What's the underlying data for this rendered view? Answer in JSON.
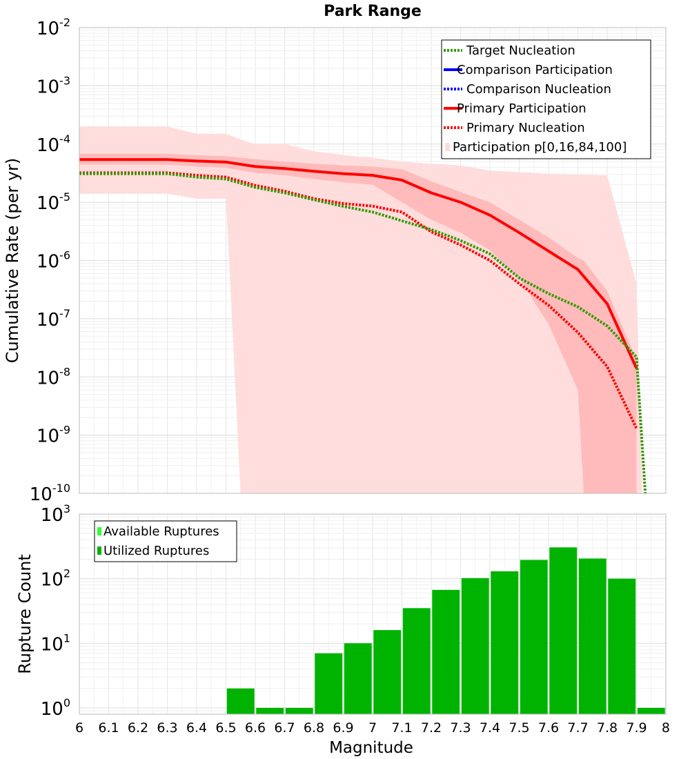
{
  "chart_data": [
    {
      "type": "line",
      "title": "Park Range",
      "xlabel": "",
      "ylabel": "Cumulative Rate (per yr)",
      "xlim": [
        6,
        8
      ],
      "ylim": [
        1e-10,
        0.01
      ],
      "yscale": "log",
      "grid": true,
      "legend_position": "top-right",
      "y_ticks": [
        {
          "base": "10",
          "exp": "-2"
        },
        {
          "base": "10",
          "exp": "-3"
        },
        {
          "base": "10",
          "exp": "-4"
        },
        {
          "base": "10",
          "exp": "-5"
        },
        {
          "base": "10",
          "exp": "-6"
        },
        {
          "base": "10",
          "exp": "-7"
        },
        {
          "base": "10",
          "exp": "-8"
        },
        {
          "base": "10",
          "exp": "-9"
        },
        {
          "base": "10",
          "exp": "-10"
        }
      ],
      "legend": [
        "Target Nucleation",
        "Comparison Participation",
        "Comparison Nucleation",
        "Primary Participation",
        "Primary Nucleation",
        "Participation p[0,16,84,100]"
      ],
      "x": [
        6.0,
        6.1,
        6.2,
        6.3,
        6.4,
        6.5,
        6.6,
        6.7,
        6.8,
        6.9,
        7.0,
        7.1,
        7.2,
        7.3,
        7.4,
        7.5,
        7.6,
        7.7,
        7.8,
        7.9
      ],
      "series": [
        {
          "name": "Primary Participation",
          "color": "#ff0000",
          "style": "solid",
          "values": [
            5.4e-05,
            5.4e-05,
            5.4e-05,
            5.4e-05,
            5.1e-05,
            4.9e-05,
            4.1e-05,
            3.8e-05,
            3.4e-05,
            3.1e-05,
            2.9e-05,
            2.4e-05,
            1.45e-05,
            1e-05,
            6e-06,
            3e-06,
            1.45e-06,
            7e-07,
            1.8e-07,
            1.4e-08
          ]
        },
        {
          "name": "Primary Nucleation",
          "color": "#ff0000",
          "style": "dotted",
          "values": [
            3.2e-05,
            3.2e-05,
            3.2e-05,
            3.2e-05,
            2.9e-05,
            2.7e-05,
            1.95e-05,
            1.55e-05,
            1.15e-05,
            9.5e-06,
            8.6e-06,
            6.8e-06,
            3.1e-06,
            1.85e-06,
            1e-06,
            4e-07,
            1.7e-07,
            5.8e-08,
            1.5e-08,
            1.3e-09
          ]
        },
        {
          "name": "Target Nucleation",
          "color": "#339900",
          "style": "dotted",
          "x": [
            6.0,
            6.1,
            6.2,
            6.3,
            6.4,
            6.5,
            6.6,
            6.7,
            6.8,
            6.9,
            7.0,
            7.1,
            7.2,
            7.3,
            7.4,
            7.5,
            7.6,
            7.7,
            7.8,
            7.9,
            7.93
          ],
          "values": [
            3.1e-05,
            3.1e-05,
            3.1e-05,
            3.1e-05,
            2.7e-05,
            2.5e-05,
            1.8e-05,
            1.45e-05,
            1.1e-05,
            8.5e-06,
            6.8e-06,
            4.8e-06,
            3.4e-06,
            2.2e-06,
            1.3e-06,
            5e-07,
            2.7e-07,
            1.6e-07,
            7.5e-08,
            2.2e-08,
            1e-10
          ]
        }
      ],
      "bands": [
        {
          "name": "Participation p[0,100]",
          "color": "#ffdddd",
          "x": [
            6.0,
            6.1,
            6.2,
            6.3,
            6.4,
            6.5,
            6.55,
            6.6,
            6.7,
            6.8,
            6.9,
            7.0,
            7.1,
            7.2,
            7.3,
            7.4,
            7.5,
            7.6,
            7.7,
            7.8,
            7.9,
            7.92
          ],
          "low": [
            1.4e-05,
            1.4e-05,
            1.4e-05,
            1.4e-05,
            1.15e-05,
            1.15e-05,
            1e-10,
            1e-10,
            1e-10,
            1e-10,
            1e-10,
            1e-10,
            1e-10,
            1e-10,
            1e-10,
            1e-10,
            1e-10,
            1e-10,
            1e-10,
            1e-10,
            1e-10,
            1e-10
          ],
          "high": [
            0.0002,
            0.0002,
            0.0002,
            0.0002,
            0.00015,
            0.00015,
            0.00012,
            0.0001,
            0.0001,
            7.5e-05,
            6.5e-05,
            5.8e-05,
            5e-05,
            4.6e-05,
            4.3e-05,
            3.5e-05,
            3.3e-05,
            3.1e-05,
            3e-05,
            2.9e-05,
            4e-07,
            1e-10
          ]
        },
        {
          "name": "Participation p[16,84]",
          "color": "#ffbbbb",
          "x": [
            6.0,
            6.1,
            6.2,
            6.3,
            6.4,
            6.5,
            6.6,
            6.7,
            6.8,
            6.9,
            7.0,
            7.1,
            7.2,
            7.3,
            7.4,
            7.5,
            7.6,
            7.7,
            7.72,
            7.8,
            7.9
          ],
          "low": [
            4.4e-05,
            4.4e-05,
            4.4e-05,
            4.4e-05,
            4.1e-05,
            3.9e-05,
            3.2e-05,
            2.9e-05,
            2.5e-05,
            2.2e-05,
            2e-05,
            1e-05,
            5e-06,
            3e-06,
            1.5e-06,
            5e-07,
            8e-08,
            6e-09,
            1e-10,
            1e-10,
            1e-10
          ],
          "high": [
            6.8e-05,
            6.8e-05,
            6.8e-05,
            6.8e-05,
            6.4e-05,
            6.2e-05,
            5.5e-05,
            5e-05,
            4.6e-05,
            4.3e-05,
            4.1e-05,
            3.7e-05,
            2.3e-05,
            1.5e-05,
            1e-05,
            5e-06,
            2.5e-06,
            1.1e-06,
            1e-06,
            3e-07,
            2e-08
          ]
        }
      ]
    },
    {
      "type": "bar",
      "title": "",
      "xlabel": "Magnitude",
      "ylabel": "Rupture Count",
      "xlim": [
        6,
        8
      ],
      "ylim": [
        0.8,
        1000
      ],
      "yscale": "log",
      "grid": true,
      "legend_position": "top-left",
      "x_tick_labels": [
        "6",
        "6.1",
        "6.2",
        "6.3",
        "6.4",
        "6.5",
        "6.6",
        "6.7",
        "6.8",
        "6.9",
        "7",
        "7.1",
        "7.2",
        "7.3",
        "7.4",
        "7.5",
        "7.6",
        "7.7",
        "7.8",
        "7.9",
        "8"
      ],
      "y_ticks": [
        {
          "base": "10",
          "exp": "3"
        },
        {
          "base": "10",
          "exp": "2"
        },
        {
          "base": "10",
          "exp": "1"
        },
        {
          "base": "10",
          "exp": "0"
        }
      ],
      "legend": [
        {
          "label": "Available Ruptures",
          "color": "#33ff33"
        },
        {
          "label": "Utilized Ruptures",
          "color": "#00b300"
        }
      ],
      "bar_color": "#00b300",
      "categories": [
        6.55,
        6.65,
        6.75,
        6.85,
        6.95,
        7.05,
        7.15,
        7.25,
        7.35,
        7.45,
        7.55,
        7.65,
        7.75,
        7.85,
        7.95
      ],
      "values": [
        2,
        1,
        1,
        7,
        10,
        16,
        35,
        67,
        102,
        130,
        195,
        305,
        205,
        100,
        1
      ]
    }
  ]
}
